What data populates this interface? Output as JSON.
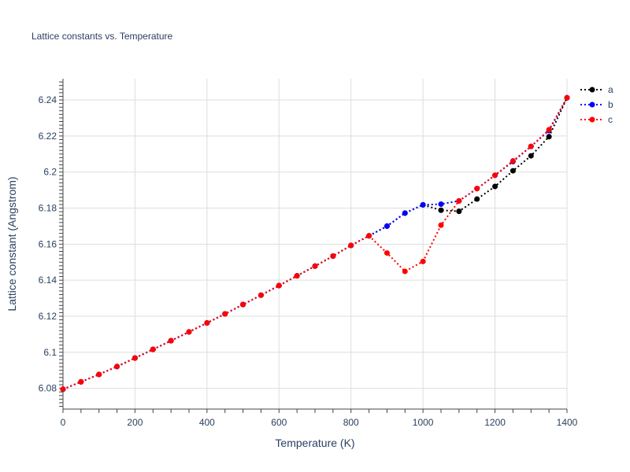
{
  "chart_data": {
    "type": "line",
    "title": "Lattice constants vs. Temperature",
    "xlabel": "Temperature (K)",
    "ylabel": "Lattice constant (Angstrom)",
    "xlim": [
      0,
      1400
    ],
    "ylim": [
      6.0685,
      6.2518
    ],
    "xticks": [
      0,
      200,
      400,
      600,
      800,
      1000,
      1200,
      1400
    ],
    "xtick_labels": [
      "0",
      "200",
      "400",
      "600",
      "800",
      "1000",
      "1200",
      "1400"
    ],
    "yticks": [
      6.08,
      6.1,
      6.12,
      6.14,
      6.16,
      6.18,
      6.2,
      6.22,
      6.24
    ],
    "ytick_labels": [
      "6.08",
      "6.1",
      "6.12",
      "6.14",
      "6.16",
      "6.18",
      "6.2",
      "6.22",
      "6.24"
    ],
    "grid": true,
    "legend_position": "top-right",
    "x": [
      0,
      50,
      100,
      150,
      200,
      250,
      300,
      350,
      400,
      450,
      500,
      550,
      600,
      650,
      700,
      750,
      800,
      850,
      900,
      950,
      1000,
      1050,
      1100,
      1150,
      1200,
      1250,
      1300,
      1350,
      1400
    ],
    "series": [
      {
        "name": "a",
        "color": "#000000",
        "values": [
          6.0795,
          6.0836,
          6.0877,
          6.0921,
          6.0968,
          6.1016,
          6.1064,
          6.1113,
          6.1163,
          6.1213,
          6.1265,
          6.1317,
          6.137,
          6.1424,
          6.1478,
          6.1534,
          6.1593,
          6.1646,
          6.17,
          6.1772,
          6.1818,
          6.1788,
          6.1782,
          6.185,
          6.192,
          6.2007,
          6.209,
          6.2196,
          6.2412
        ]
      },
      {
        "name": "b",
        "color": "#0000ff",
        "values": [
          6.0795,
          6.0836,
          6.0877,
          6.0921,
          6.0968,
          6.1016,
          6.1064,
          6.1113,
          6.1163,
          6.1213,
          6.1265,
          6.1317,
          6.137,
          6.1424,
          6.1478,
          6.1534,
          6.1593,
          6.1646,
          6.17,
          6.1772,
          6.1818,
          6.1822,
          6.184,
          6.1908,
          6.1982,
          6.2058,
          6.2142,
          6.223,
          6.2412
        ]
      },
      {
        "name": "c",
        "color": "#ff0000",
        "values": [
          6.0795,
          6.0836,
          6.0877,
          6.0921,
          6.0968,
          6.1016,
          6.1064,
          6.1113,
          6.1163,
          6.1213,
          6.1265,
          6.1317,
          6.137,
          6.1424,
          6.1478,
          6.1534,
          6.1593,
          6.1646,
          6.1551,
          6.1449,
          6.1504,
          6.1705,
          6.184,
          6.1908,
          6.1982,
          6.2062,
          6.2142,
          6.2235,
          6.2412
        ]
      }
    ]
  }
}
